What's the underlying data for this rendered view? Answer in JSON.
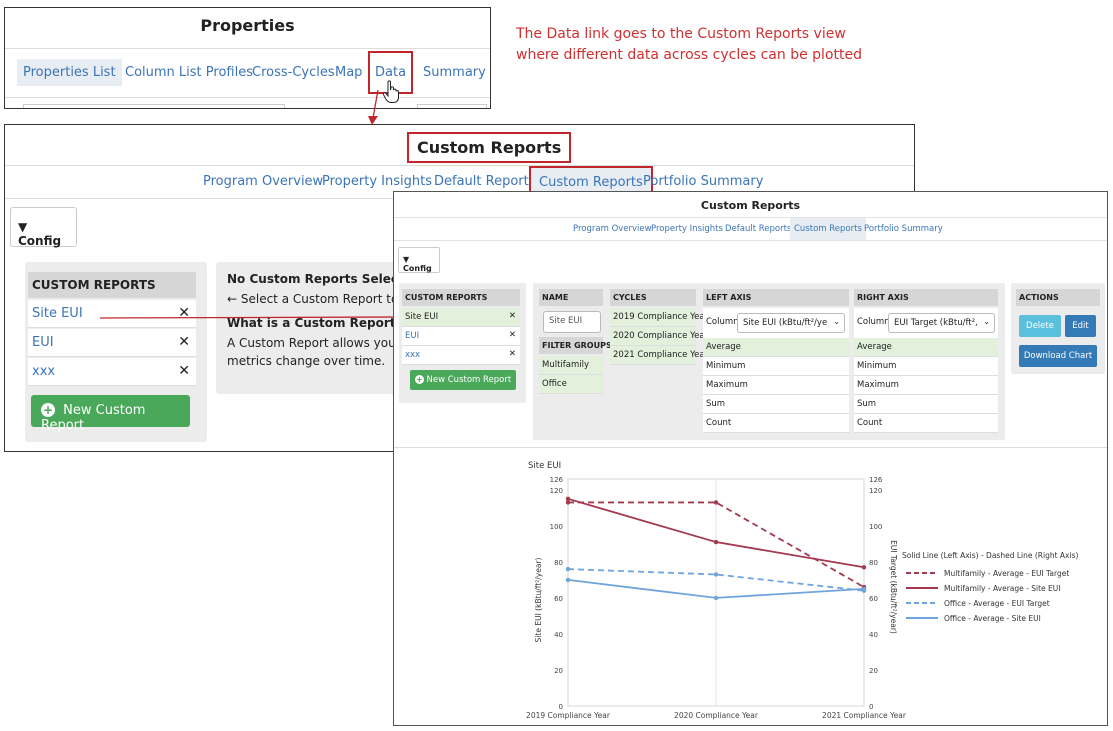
{
  "properties": {
    "title": "Properties",
    "tabs": [
      "Properties List",
      "Column List Profiles",
      "Cross-Cycles",
      "Map",
      "Data",
      "Summary"
    ]
  },
  "annotation": {
    "line1": "The Data link goes to the Custom Reports view",
    "line2": "where different data across cycles can be plotted",
    "color": "#d0302f"
  },
  "custom_reports_main": {
    "title": "Custom Reports",
    "nav": [
      "Program Overview",
      "Property Insights",
      "Default Reports",
      "Custom Reports",
      "Portfolio Summary"
    ],
    "config_label": "Config",
    "list_header": "CUSTOM REPORTS",
    "reports": [
      "Site EUI",
      "EUI",
      "xxx"
    ],
    "new_button": "New Custom Report",
    "info": {
      "heading1": "No Custom Reports Selected",
      "text1": "← Select a Custom Report to g",
      "heading2": "What is a Custom Report?",
      "text2a": "A Custom Report allows you to",
      "text2b": "metrics change over time."
    }
  },
  "custom_reports_detail": {
    "title": "Custom Reports",
    "nav": [
      "Program Overview",
      "Property Insights",
      "Default Reports",
      "Custom Reports",
      "Portfolio Summary"
    ],
    "config_label": "Config",
    "list_header": "CUSTOM REPORTS",
    "reports": [
      "Site EUI",
      "EUI",
      "xxx"
    ],
    "new_button": "New Custom Report",
    "name_header": "NAME",
    "name_value": "Site EUI",
    "filter_header": "FILTER GROUPS",
    "filters": [
      "Multifamily",
      "Office"
    ],
    "cycles_header": "CYCLES",
    "cycles": [
      "2019 Compliance Year",
      "2020 Compliance Year",
      "2021 Compliance Year"
    ],
    "left_axis_header": "LEFT AXIS",
    "right_axis_header": "RIGHT AXIS",
    "column_label": "Column",
    "left_column": "Site EUI (kBtu/ft²/ye",
    "right_column": "EUI Target (kBtu/ft²,",
    "aggregations": [
      "Average",
      "Minimum",
      "Maximum",
      "Sum",
      "Count"
    ],
    "actions_header": "ACTIONS",
    "delete_label": "Delete",
    "edit_label": "Edit",
    "download_label": "Download Chart",
    "colors": {
      "green": "#4aa85a",
      "delete": "#5bc0de",
      "blue": "#337ab7"
    }
  },
  "chart_data": {
    "type": "line",
    "title": "Site EUI",
    "x": [
      "2019 Compliance Year",
      "2020 Compliance Year",
      "2021 Compliance Year"
    ],
    "ylabel": "Site EUI (kBtu/ft²/year)",
    "y2label": "EUI Target (kBtu/ft²/year)",
    "ylim": [
      0,
      126
    ],
    "y2lim": [
      0,
      126
    ],
    "yticks": [
      0,
      20,
      40,
      60,
      80,
      100,
      120,
      126
    ],
    "legend_title": "Solid Line (Left Axis) - Dashed Line (Right Axis)",
    "legend_position": "right",
    "series": [
      {
        "name": "Multifamily - Average - EUI Target",
        "axis": "right",
        "style": "dashed",
        "color": "#a3384e",
        "values": [
          113,
          113,
          66
        ]
      },
      {
        "name": "Multifamily - Average - Site EUI",
        "axis": "left",
        "style": "solid",
        "color": "#a3384e",
        "values": [
          115,
          91,
          77
        ]
      },
      {
        "name": "Office - Average - EUI Target",
        "axis": "right",
        "style": "dashed",
        "color": "#6fa5dc",
        "values": [
          76,
          73,
          64
        ]
      },
      {
        "name": "Office - Average - Site EUI",
        "axis": "left",
        "style": "solid",
        "color": "#6fa5dc",
        "values": [
          70,
          60,
          65
        ]
      }
    ]
  }
}
